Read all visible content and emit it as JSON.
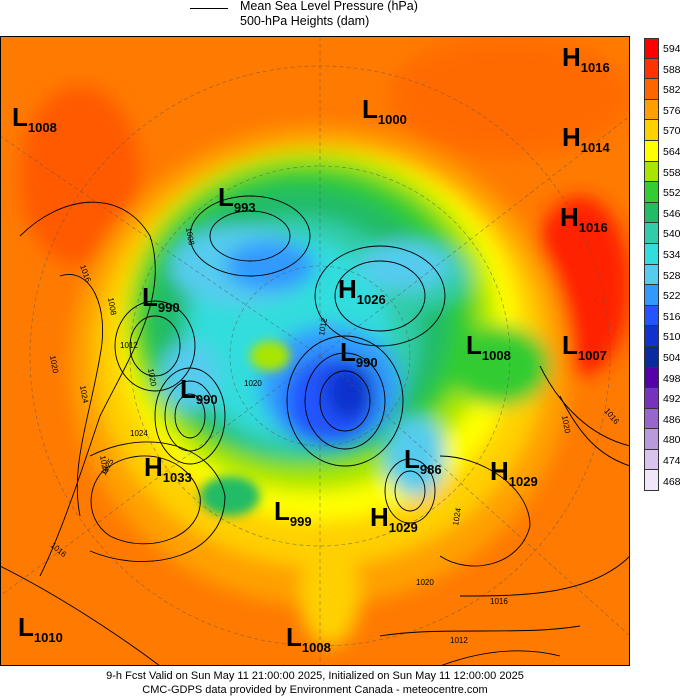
{
  "legend": {
    "mslp_label": "Mean Sea Level Pressure (hPa)",
    "heights_label": "500-hPa Heights (dam)"
  },
  "colorbar": {
    "levels": [
      "594",
      "588",
      "582",
      "576",
      "570",
      "564",
      "558",
      "552",
      "546",
      "540",
      "534",
      "528",
      "522",
      "516",
      "510",
      "504",
      "498",
      "492",
      "486",
      "480",
      "474",
      "468"
    ],
    "colors": [
      "#ff0000",
      "#ff3300",
      "#ff6600",
      "#ffa000",
      "#ffd000",
      "#ffff00",
      "#a8e600",
      "#33cc33",
      "#22bb66",
      "#33ccaa",
      "#33dddd",
      "#55ccee",
      "#3399ff",
      "#2255ff",
      "#1133cc",
      "#0a2aa0",
      "#5500aa",
      "#7733bb",
      "#9966cc",
      "#bb99dd",
      "#d8c4ee",
      "#f0e8fa"
    ]
  },
  "systems": [
    {
      "type": "L",
      "value": "1008"
    },
    {
      "type": "L",
      "value": "1000"
    },
    {
      "type": "H",
      "value": "1016"
    },
    {
      "type": "H",
      "value": "1014"
    },
    {
      "type": "H",
      "value": "1016"
    },
    {
      "type": "L",
      "value": "993"
    },
    {
      "type": "L",
      "value": "990"
    },
    {
      "type": "H",
      "value": "1026"
    },
    {
      "type": "L",
      "value": "990"
    },
    {
      "type": "L",
      "value": "1008"
    },
    {
      "type": "L",
      "value": "1007"
    },
    {
      "type": "L",
      "value": "990"
    },
    {
      "type": "H",
      "value": "1033"
    },
    {
      "type": "L",
      "value": "986"
    },
    {
      "type": "H",
      "value": "1029"
    },
    {
      "type": "L",
      "value": "999"
    },
    {
      "type": "H",
      "value": "1029"
    },
    {
      "type": "L",
      "value": "1010"
    },
    {
      "type": "L",
      "value": "1008"
    }
  ],
  "isobar_labels": [
    "1016",
    "1008",
    "1012",
    "1020",
    "1024",
    "1020",
    "1024",
    "1028",
    "1025",
    "1016",
    "1020",
    "1016",
    "1020",
    "1024",
    "1016",
    "1012",
    "1020",
    "1008",
    "1012"
  ],
  "footer": {
    "line1": "9-h Fcst Valid on Sun May 11 21:00:00 2025, Initialized on Sun May 11 12:00:00 2025",
    "line2": "CMC-GDPS data provided by Environment Canada - meteocentre.com"
  }
}
